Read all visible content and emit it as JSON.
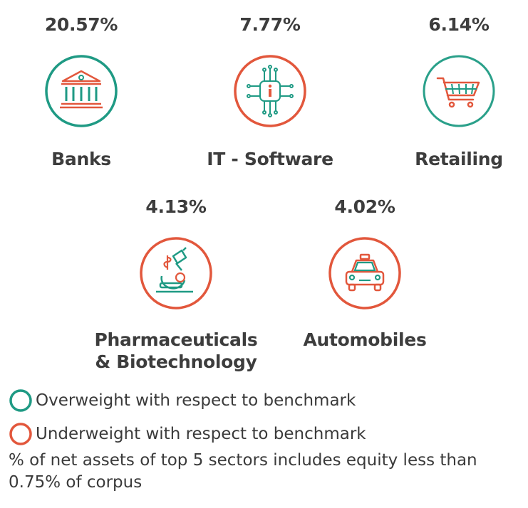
{
  "colors": {
    "overweight": "#1f9a84",
    "underweight": "#e2573c",
    "text": "#3d3d3d"
  },
  "sectors": [
    {
      "percentage": "20.57%",
      "name": "Banks",
      "icon": "bank-icon",
      "status": "overweight"
    },
    {
      "percentage": "7.77%",
      "name": "IT - Software",
      "icon": "circuit-chip-icon",
      "status": "underweight"
    },
    {
      "percentage": "6.14%",
      "name": "Retailing",
      "icon": "shopping-cart-icon",
      "status": "overweight"
    },
    {
      "percentage": "4.13%",
      "name_line1": "Pharmaceuticals",
      "name_line2": "& Biotechnology",
      "icon": "microscope-icon",
      "status": "underweight"
    },
    {
      "percentage": "4.02%",
      "name": "Automobiles",
      "icon": "car-icon",
      "status": "underweight"
    }
  ],
  "legend": {
    "overweight": "Overweight with respect to benchmark",
    "underweight": "Underweight with respect to benchmark"
  },
  "note": "% of net assets of top 5 sectors includes equity less than 0.75% of corpus"
}
